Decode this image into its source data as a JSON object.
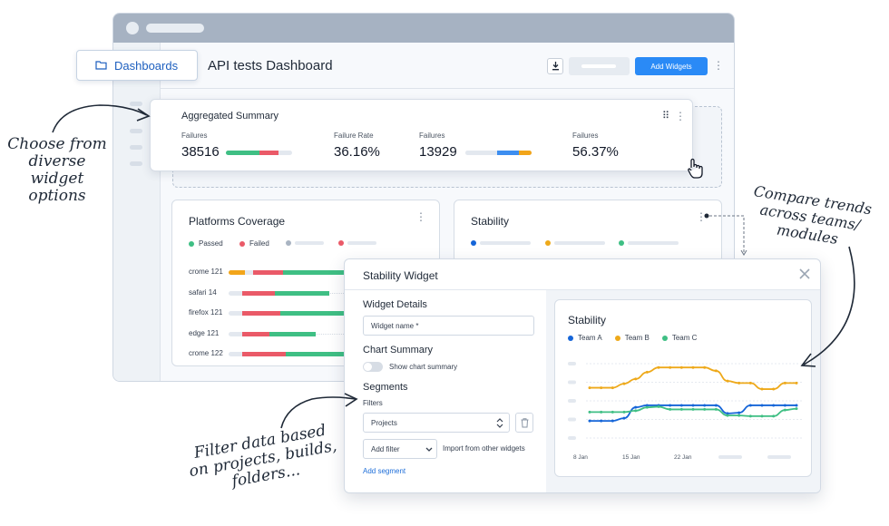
{
  "nav": {
    "dashboards_label": "Dashboards"
  },
  "header": {
    "title": "API tests Dashboard",
    "add_widgets_label": "Add Widgets"
  },
  "aggregated_summary": {
    "title": "Aggregated Summary",
    "metrics": [
      {
        "label": "Failures",
        "value": "38516"
      },
      {
        "label": "Failure Rate",
        "value": "36.16%"
      },
      {
        "label": "Failures",
        "value": "13929"
      },
      {
        "label": "Failures",
        "value": "56.37%"
      }
    ]
  },
  "platforms_coverage": {
    "title": "Platforms Coverage",
    "legend": [
      {
        "label": "Passed",
        "color": "#3fbf84"
      },
      {
        "label": "Failed",
        "color": "#ea5a68"
      }
    ],
    "rows": [
      {
        "label": "crome 121",
        "skipped": 0.12,
        "failed": 0.22,
        "passed": 0.52
      },
      {
        "label": "safari 14",
        "skipped": 0.0,
        "failed": 0.24,
        "passed": 0.4
      },
      {
        "label": "firefox 121",
        "skipped": 0.0,
        "failed": 0.28,
        "passed": 0.48
      },
      {
        "label": "edge 121",
        "skipped": 0.0,
        "failed": 0.2,
        "passed": 0.34
      },
      {
        "label": "crome 122",
        "skipped": 0.0,
        "failed": 0.32,
        "passed": 0.56
      }
    ],
    "colors": {
      "skipped": "#f2a51a",
      "failed": "#ea5a68",
      "passed": "#3fbf84"
    }
  },
  "stability_card": {
    "title": "Stability"
  },
  "modal": {
    "title": "Stability Widget",
    "widget_details_title": "Widget Details",
    "widget_name_placeholder": "Widget name *",
    "chart_summary_title": "Chart Summary",
    "show_chart_summary_label": "Show chart summary",
    "segments_title": "Segments",
    "filters_label": "Filters",
    "projects_value": "Projects",
    "add_filter_label": "Add filter",
    "import_label": "Import from other widgets",
    "add_segment_label": "Add segment"
  },
  "chart_data": {
    "type": "line",
    "title": "Stability",
    "x_ticks": [
      "8 Jan",
      "15 Jan",
      "22 Jan"
    ],
    "legend_position": "top-left",
    "series": [
      {
        "name": "Team A",
        "color": "#1565d8",
        "values": [
          1,
          1,
          1,
          1.2,
          2,
          2.15,
          2.15,
          2.15,
          2.15,
          2.15,
          2.15,
          2.15,
          1.55,
          1.6,
          2.15,
          2.15,
          2.15,
          2.15,
          2.15
        ]
      },
      {
        "name": "Team B",
        "color": "#eea91a",
        "values": [
          3.45,
          3.45,
          3.45,
          3.75,
          4.1,
          4.6,
          4.95,
          4.95,
          4.95,
          4.95,
          4.95,
          4.7,
          3.95,
          3.8,
          3.8,
          3.35,
          3.35,
          3.8,
          3.8
        ]
      },
      {
        "name": "Team C",
        "color": "#3fbf84",
        "values": [
          1.65,
          1.65,
          1.65,
          1.65,
          1.75,
          2.0,
          2.05,
          1.85,
          1.85,
          1.85,
          1.85,
          1.85,
          1.4,
          1.4,
          1.35,
          1.35,
          1.35,
          1.8,
          1.9
        ]
      }
    ],
    "ylim": [
      0,
      5.5
    ],
    "grid": true
  },
  "annotations": {
    "choose": [
      "Choose from",
      "diverse widget",
      "options"
    ],
    "compare": [
      "Compare trends",
      "across teams/",
      "modules"
    ],
    "filter": [
      "Filter data based",
      "on projects, builds,",
      "folders..."
    ]
  }
}
